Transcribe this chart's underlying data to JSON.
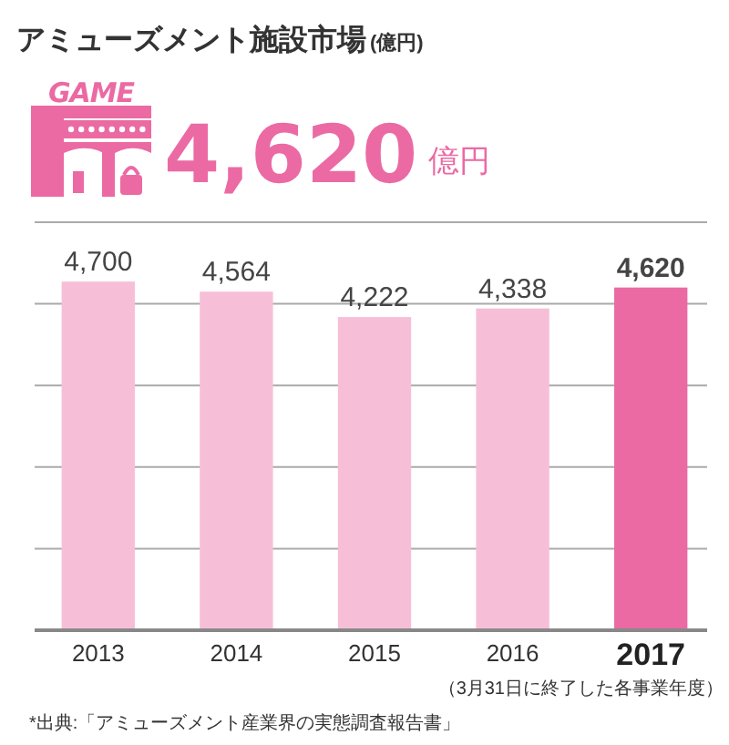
{
  "chart_data": {
    "type": "bar",
    "title": "アミューズメント施設市場",
    "categories": [
      "2013",
      "2014",
      "2015",
      "2016",
      "2017"
    ],
    "values": [
      4700,
      4564,
      4222,
      4338,
      4620
    ],
    "colors": [
      "#f6bfd7",
      "#f6bfd7",
      "#f6bfd7",
      "#f6bfd7",
      "#eb6aa3"
    ],
    "value_labels": [
      "4,700",
      "4,564",
      "4,222",
      "4,338",
      "4,620"
    ],
    "ylim": [
      0,
      5500
    ],
    "yticks": [
      {
        "value": 1100,
        "label": null
      },
      {
        "value": 2200,
        "label": null
      },
      {
        "value": 3300,
        "label": null
      },
      {
        "value": 4400,
        "label": null
      },
      {
        "value": 5500,
        "label": null
      }
    ],
    "grid": "y",
    "annotations": [
      "(億円)",
      "GAME",
      "4,620",
      "億円",
      "*出典:「アミューズメント産業界の実態調査報告書」",
      "（3月31日に終了した各事業年度）"
    ]
  }
}
